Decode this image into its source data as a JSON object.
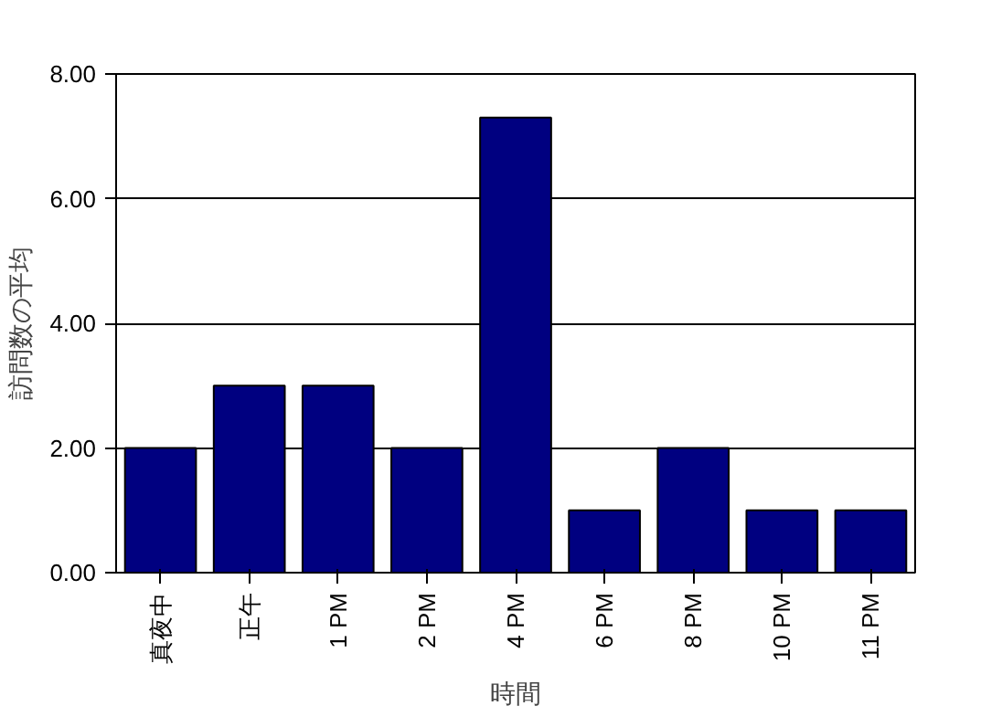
{
  "chart_data": {
    "type": "bar",
    "xlabel": "時間",
    "ylabel": "訪問数の平均",
    "categories": [
      "真夜中",
      "正午",
      "1 PM",
      "2 PM",
      "4 PM",
      "6 PM",
      "8 PM",
      "10 PM",
      "11 PM"
    ],
    "values": [
      2,
      3,
      3,
      2,
      7.3,
      1,
      2,
      1,
      1
    ],
    "color": "#000080",
    "ylim": [
      0,
      8
    ],
    "yticks": [
      {
        "value": 0,
        "label": "0.00"
      },
      {
        "value": 2,
        "label": "2.00"
      },
      {
        "value": 4,
        "label": "4.00"
      },
      {
        "value": 6,
        "label": "6.00"
      },
      {
        "value": 8,
        "label": "8.00"
      }
    ],
    "grid": "y"
  }
}
